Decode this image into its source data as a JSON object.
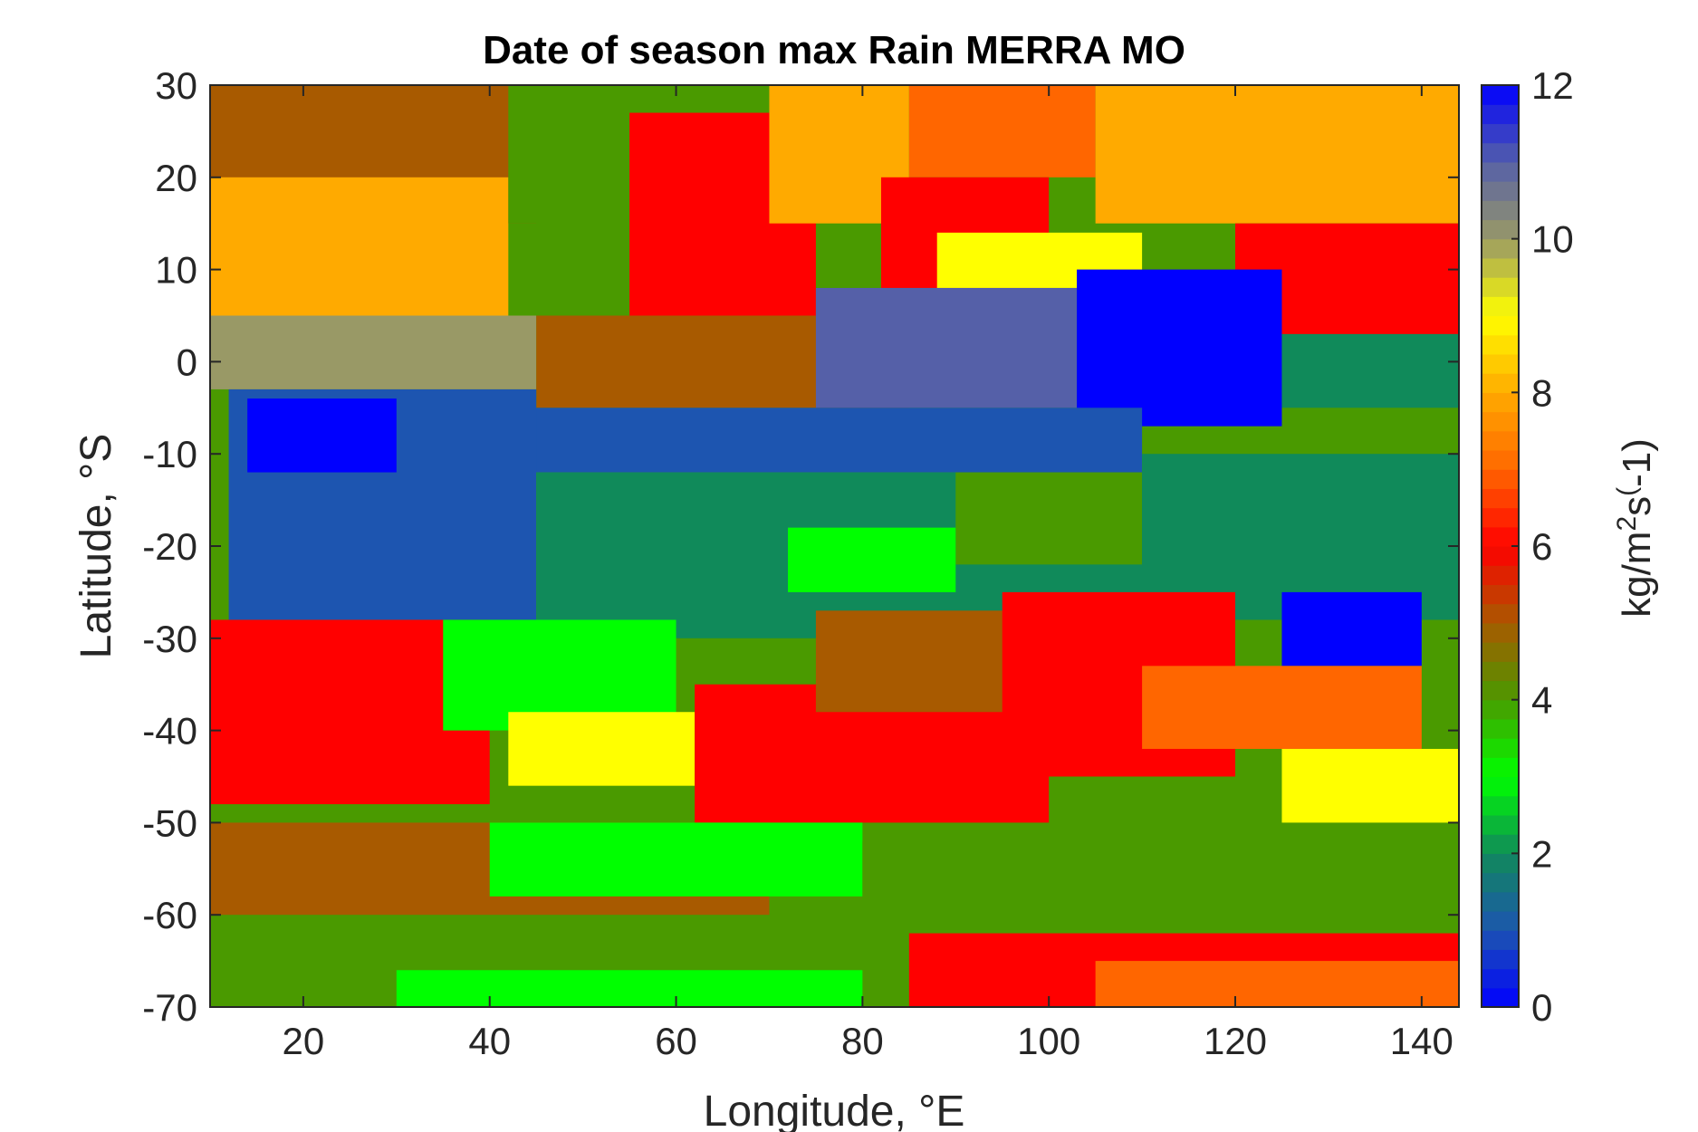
{
  "chart_data": {
    "type": "heatmap",
    "title": "Date of season max Rain MERRA MO",
    "xlabel": "Longitude, °E",
    "ylabel": "Latitude, °S",
    "xlim": [
      10,
      144
    ],
    "ylim": [
      -70,
      30
    ],
    "xticks": [
      20,
      40,
      60,
      80,
      100,
      120,
      140
    ],
    "yticks": [
      30,
      20,
      10,
      0,
      -10,
      -20,
      -30,
      -40,
      -50,
      -60,
      -70
    ],
    "colorbar": {
      "label_base": "kg/m",
      "label_sup1": "2",
      "label_mid": "s",
      "label_sup2": "(",
      "label_end": "-1)",
      "range": [
        0,
        12
      ],
      "ticks": [
        0,
        2,
        4,
        6,
        8,
        10,
        12
      ],
      "stops": [
        {
          "v": 0,
          "c": "#0000ff"
        },
        {
          "v": 1,
          "c": "#1d55b0"
        },
        {
          "v": 2,
          "c": "#108a5a"
        },
        {
          "v": 3,
          "c": "#00ff00"
        },
        {
          "v": 4,
          "c": "#4a9a00"
        },
        {
          "v": 5,
          "c": "#a85a00"
        },
        {
          "v": 6,
          "c": "#ff0000"
        },
        {
          "v": 7,
          "c": "#ff6600"
        },
        {
          "v": 8,
          "c": "#ffaa00"
        },
        {
          "v": 9,
          "c": "#ffff00"
        },
        {
          "v": 10,
          "c": "#999966"
        },
        {
          "v": 11,
          "c": "#5560a8"
        },
        {
          "v": 12,
          "c": "#0000ff"
        }
      ]
    },
    "regions": [
      {
        "lon": [
          10,
          144
        ],
        "lat": [
          -70,
          30
        ],
        "value": 4
      },
      {
        "lon": [
          10,
          45
        ],
        "lat": [
          15,
          30
        ],
        "value": 5
      },
      {
        "lon": [
          10,
          42
        ],
        "lat": [
          5,
          20
        ],
        "value": 8
      },
      {
        "lon": [
          10,
          45
        ],
        "lat": [
          -3,
          5
        ],
        "value": 10
      },
      {
        "lon": [
          42,
          55
        ],
        "lat": [
          15,
          30
        ],
        "value": 4
      },
      {
        "lon": [
          55,
          75
        ],
        "lat": [
          5,
          27
        ],
        "value": 6
      },
      {
        "lon": [
          70,
          85
        ],
        "lat": [
          15,
          30
        ],
        "value": 8
      },
      {
        "lon": [
          85,
          105
        ],
        "lat": [
          20,
          30
        ],
        "value": 7
      },
      {
        "lon": [
          82,
          100
        ],
        "lat": [
          8,
          20
        ],
        "value": 6
      },
      {
        "lon": [
          105,
          144
        ],
        "lat": [
          15,
          30
        ],
        "value": 8
      },
      {
        "lon": [
          120,
          144
        ],
        "lat": [
          2,
          15
        ],
        "value": 6
      },
      {
        "lon": [
          88,
          110
        ],
        "lat": [
          8,
          14
        ],
        "value": 9
      },
      {
        "lon": [
          45,
          85
        ],
        "lat": [
          -5,
          5
        ],
        "value": 5
      },
      {
        "lon": [
          75,
          103
        ],
        "lat": [
          -5,
          8
        ],
        "value": 11
      },
      {
        "lon": [
          103,
          125
        ],
        "lat": [
          -7,
          10
        ],
        "value": 0
      },
      {
        "lon": [
          125,
          144
        ],
        "lat": [
          -5,
          3
        ],
        "value": 2
      },
      {
        "lon": [
          40,
          110
        ],
        "lat": [
          -12,
          -5
        ],
        "value": 1
      },
      {
        "lon": [
          12,
          45
        ],
        "lat": [
          -28,
          -3
        ],
        "value": 1
      },
      {
        "lon": [
          14,
          30
        ],
        "lat": [
          -12,
          -4
        ],
        "value": 0
      },
      {
        "lon": [
          45,
          120
        ],
        "lat": [
          -30,
          -12
        ],
        "value": 2
      },
      {
        "lon": [
          90,
          110
        ],
        "lat": [
          -22,
          -12
        ],
        "value": 4
      },
      {
        "lon": [
          72,
          90
        ],
        "lat": [
          -25,
          -18
        ],
        "value": 3
      },
      {
        "lon": [
          110,
          144
        ],
        "lat": [
          -28,
          -10
        ],
        "value": 2
      },
      {
        "lon": [
          125,
          140
        ],
        "lat": [
          -33,
          -25
        ],
        "value": 0
      },
      {
        "lon": [
          10,
          40
        ],
        "lat": [
          -48,
          -28
        ],
        "value": 6
      },
      {
        "lon": [
          35,
          60
        ],
        "lat": [
          -40,
          -28
        ],
        "value": 3
      },
      {
        "lon": [
          42,
          62
        ],
        "lat": [
          -46,
          -38
        ],
        "value": 9
      },
      {
        "lon": [
          62,
          100
        ],
        "lat": [
          -50,
          -35
        ],
        "value": 6
      },
      {
        "lon": [
          75,
          100
        ],
        "lat": [
          -38,
          -27
        ],
        "value": 5
      },
      {
        "lon": [
          95,
          120
        ],
        "lat": [
          -45,
          -25
        ],
        "value": 6
      },
      {
        "lon": [
          110,
          140
        ],
        "lat": [
          -42,
          -33
        ],
        "value": 7
      },
      {
        "lon": [
          125,
          144
        ],
        "lat": [
          -50,
          -42
        ],
        "value": 9
      },
      {
        "lon": [
          10,
          70
        ],
        "lat": [
          -60,
          -50
        ],
        "value": 5
      },
      {
        "lon": [
          40,
          80
        ],
        "lat": [
          -58,
          -50
        ],
        "value": 3
      },
      {
        "lon": [
          80,
          144
        ],
        "lat": [
          -62,
          -52
        ],
        "value": 4
      },
      {
        "lon": [
          85,
          144
        ],
        "lat": [
          -70,
          -62
        ],
        "value": 6
      },
      {
        "lon": [
          105,
          144
        ],
        "lat": [
          -70,
          -65
        ],
        "value": 7
      },
      {
        "lon": [
          30,
          80
        ],
        "lat": [
          -70,
          -66
        ],
        "value": 3
      }
    ]
  }
}
